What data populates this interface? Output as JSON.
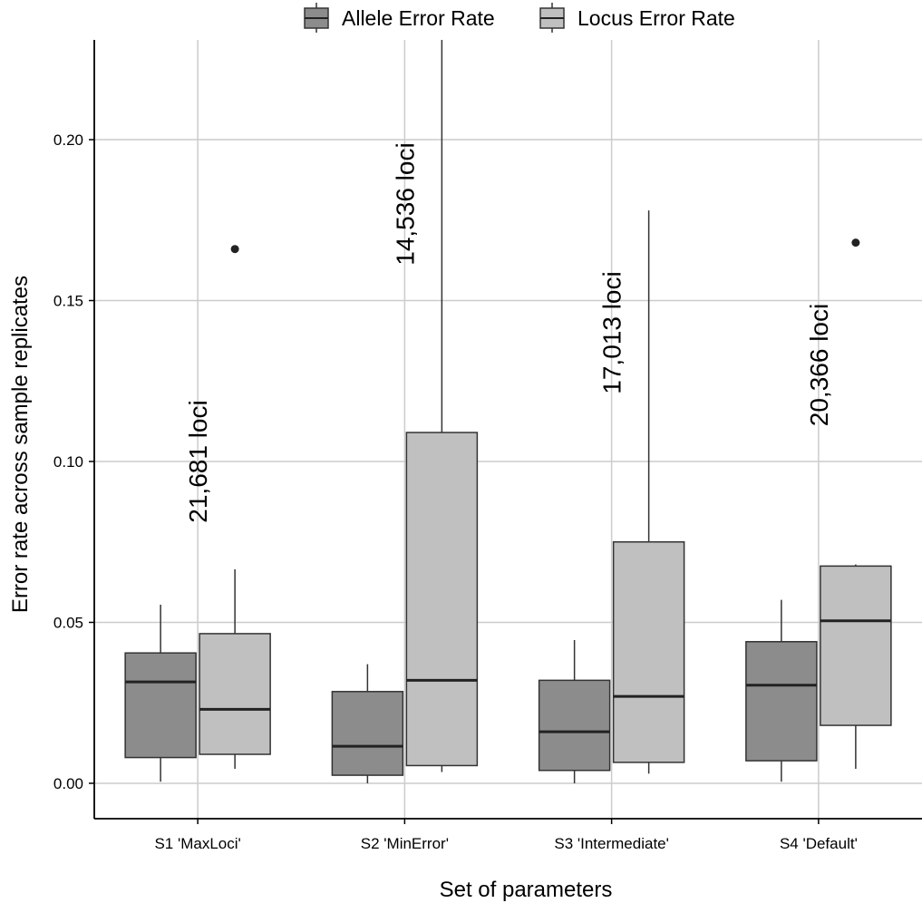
{
  "chart_data": {
    "type": "boxplot",
    "xlabel": "Set of parameters",
    "ylabel": "Error rate across sample replicates",
    "ylim": [
      -0.011,
      0.231
    ],
    "yticks": [
      0.0,
      0.05,
      0.1,
      0.15,
      0.2
    ],
    "ytick_labels": [
      "0.00",
      "0.05",
      "0.10",
      "0.15",
      "0.20"
    ],
    "grid": true,
    "legend_position": "top",
    "categories": [
      "S1 'MaxLoci'",
      "S2 'MinError'",
      "S3 'Intermediate'",
      "S4 'Default'"
    ],
    "series": [
      {
        "name": "Allele Error Rate",
        "color": "#8c8c8c",
        "boxes": [
          {
            "min": 0.0005,
            "q1": 0.008,
            "median": 0.0315,
            "q3": 0.0405,
            "max": 0.0555,
            "outliers": []
          },
          {
            "min": 0.0,
            "q1": 0.0025,
            "median": 0.0115,
            "q3": 0.0285,
            "max": 0.037,
            "outliers": []
          },
          {
            "min": 0.0,
            "q1": 0.004,
            "median": 0.016,
            "q3": 0.032,
            "max": 0.0445,
            "outliers": []
          },
          {
            "min": 0.0005,
            "q1": 0.007,
            "median": 0.0305,
            "q3": 0.044,
            "max": 0.057,
            "outliers": []
          }
        ]
      },
      {
        "name": "Locus Error Rate",
        "color": "#c0c0c0",
        "boxes": [
          {
            "min": 0.0045,
            "q1": 0.009,
            "median": 0.023,
            "q3": 0.0465,
            "max": 0.0665,
            "outliers": [
              0.166
            ]
          },
          {
            "min": 0.0035,
            "q1": 0.0055,
            "median": 0.032,
            "q3": 0.109,
            "max": 0.231,
            "outliers": []
          },
          {
            "min": 0.003,
            "q1": 0.0065,
            "median": 0.027,
            "q3": 0.075,
            "max": 0.178,
            "outliers": []
          },
          {
            "min": 0.0045,
            "q1": 0.018,
            "median": 0.0505,
            "q3": 0.0675,
            "max": 0.068,
            "outliers": [
              0.168
            ]
          }
        ]
      }
    ],
    "annotations": [
      {
        "category_index": 0,
        "y": 0.1,
        "text": "21,681 loci"
      },
      {
        "category_index": 1,
        "y": 0.18,
        "text": "14,536 loci"
      },
      {
        "category_index": 2,
        "y": 0.14,
        "text": "17,013 loci"
      },
      {
        "category_index": 3,
        "y": 0.13,
        "text": "20,366 loci"
      }
    ]
  }
}
